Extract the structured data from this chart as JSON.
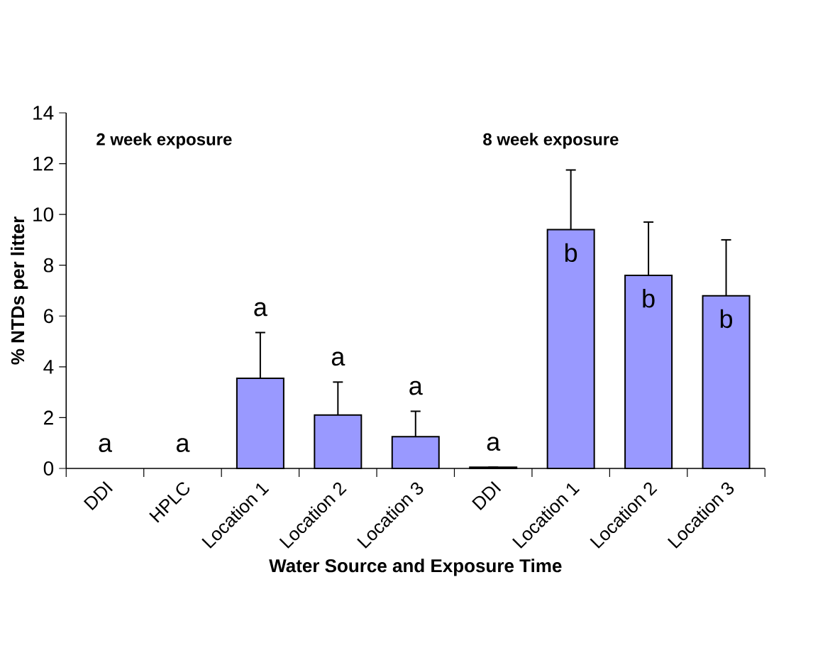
{
  "chart_data": {
    "type": "bar",
    "xlabel": "Water Source and Exposure Time",
    "ylabel": "% NTDs per litter",
    "categories": [
      "DDI",
      "HPLC",
      "Location 1",
      "Location 2",
      "Location 3",
      "DDI",
      "Location 1",
      "Location 2",
      "Location 3"
    ],
    "values": [
      0,
      0,
      3.55,
      2.1,
      1.25,
      0.05,
      9.4,
      7.6,
      6.8
    ],
    "errors": [
      null,
      null,
      1.8,
      1.3,
      1.0,
      null,
      2.35,
      2.1,
      2.2
    ],
    "color": "#9999ff",
    "ylim": [
      0,
      14
    ],
    "yticks": [
      0,
      2,
      4,
      6,
      8,
      10,
      12,
      14
    ],
    "annotations": [
      "2 week exposure",
      "8 week exposure",
      "a",
      "a",
      "a",
      "a",
      "a",
      "a",
      "b",
      "b",
      "b"
    ]
  }
}
